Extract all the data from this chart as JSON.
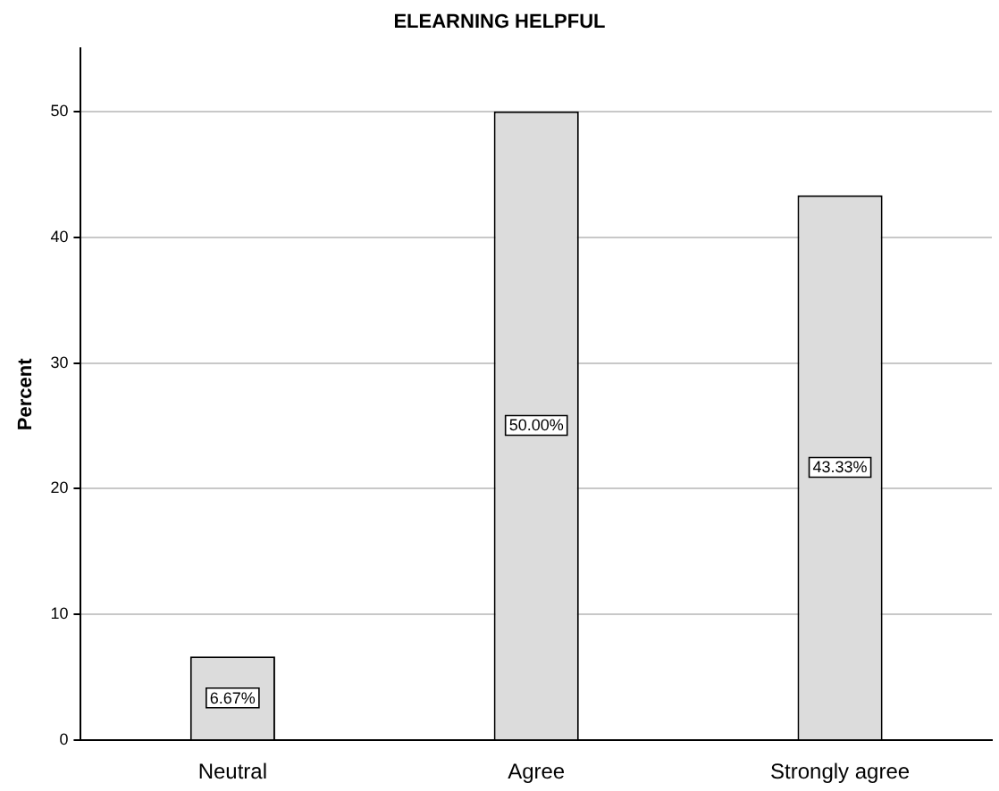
{
  "chart_data": {
    "type": "bar",
    "title": "ELEARNING HELPFUL",
    "ylabel": "Percent",
    "categories": [
      "Neutral",
      "Agree",
      "Strongly agree"
    ],
    "values": [
      6.67,
      50.0,
      43.33
    ],
    "value_labels": [
      "6.67%",
      "50.00%",
      "43.33%"
    ],
    "color": "#dcdcdc",
    "ylim": [
      0,
      55
    ],
    "yticks": [
      0,
      10,
      20,
      30,
      40,
      50
    ],
    "grid": "y"
  }
}
